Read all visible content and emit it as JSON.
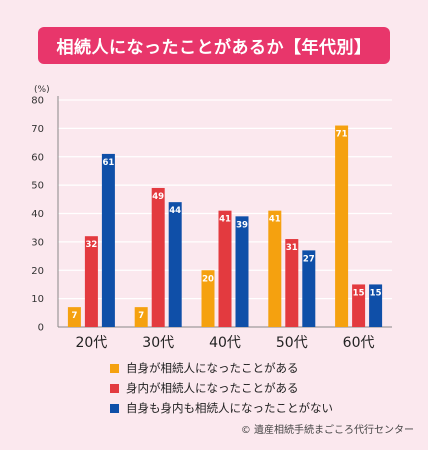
{
  "title": "相続人になったことがあるか【年代別】",
  "credit": "© 遺産相続手続まごころ代行センター",
  "colors": {
    "title_bg": "#e8366b",
    "background": "#fbe8ee",
    "grid": "#ffffff",
    "axis": "#888888"
  },
  "chart_data": {
    "type": "bar",
    "title": "相続人になったことがあるか【年代別】",
    "y_unit": "(%)",
    "ylim": [
      0,
      80
    ],
    "yticks": [
      0,
      10,
      20,
      30,
      40,
      50,
      60,
      70,
      80
    ],
    "grid": true,
    "legend_position": "bottom",
    "categories": [
      "20代",
      "30代",
      "40代",
      "50代",
      "60代"
    ],
    "series": [
      {
        "name": "自身が相続人になったことがある",
        "color": "#f5a10f",
        "values": [
          7,
          7,
          20,
          41,
          71
        ]
      },
      {
        "name": "身内が相続人になったことがある",
        "color": "#e33a3f",
        "values": [
          32,
          49,
          41,
          31,
          15
        ]
      },
      {
        "name": "自身も身内も相続人になったことがない",
        "color": "#0f4fa8",
        "values": [
          61,
          44,
          39,
          27,
          15
        ]
      }
    ]
  }
}
